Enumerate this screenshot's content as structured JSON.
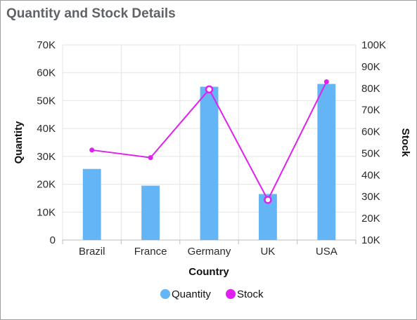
{
  "title": "Quantity and Stock Details",
  "chart_data": {
    "type": "bar",
    "categories": [
      "Brazil",
      "France",
      "Germany",
      "UK",
      "USA"
    ],
    "series": [
      {
        "name": "Quantity",
        "type": "bar",
        "axis": "left",
        "color": "#64b5f6",
        "values": [
          25500,
          19500,
          55000,
          16500,
          56000
        ]
      },
      {
        "name": "Stock",
        "type": "line",
        "axis": "right",
        "color": "#e020f0",
        "values": [
          51500,
          48000,
          79500,
          28500,
          83000
        ]
      }
    ],
    "xlabel": "Country",
    "ylabel": "Quantity",
    "y2label": "Stock",
    "ylim": [
      0,
      70000
    ],
    "y2lim": [
      10000,
      100000
    ],
    "yticks": [
      "0",
      "10K",
      "20K",
      "30K",
      "40K",
      "50K",
      "60K",
      "70K"
    ],
    "y2ticks": [
      "10K",
      "20K",
      "30K",
      "40K",
      "50K",
      "60K",
      "70K",
      "80K",
      "90K",
      "100K"
    ],
    "legend": [
      "Quantity",
      "Stock"
    ],
    "legend_position": "bottom",
    "grid": true
  }
}
